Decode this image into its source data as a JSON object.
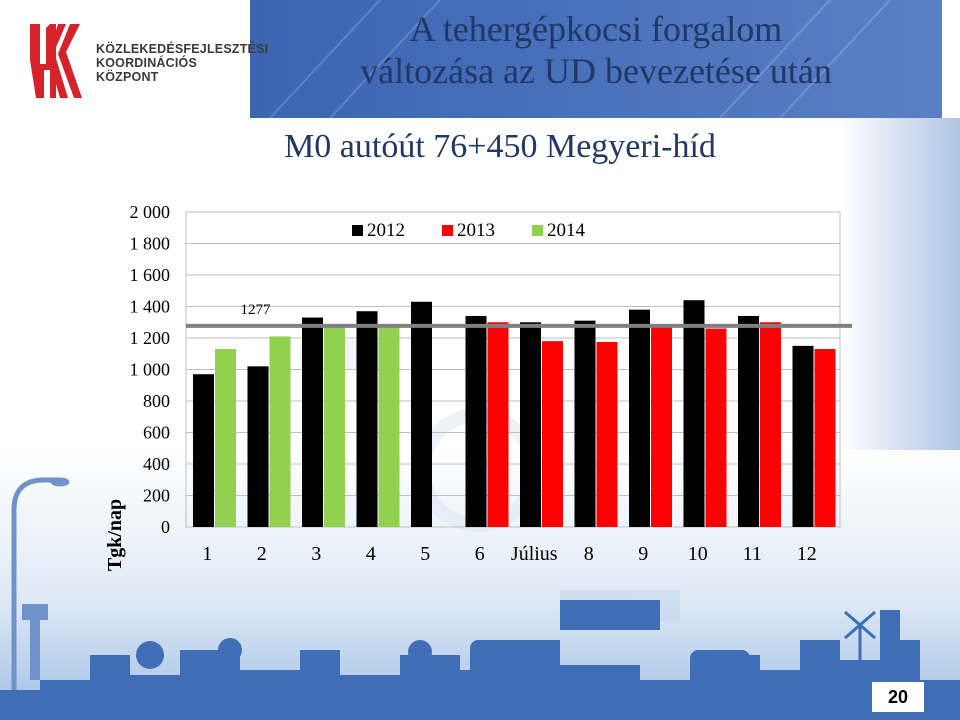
{
  "logo": {
    "line1": "KÖZLEKEDÉSFEJLESZTÉSI",
    "line2": "KOORDINÁCIÓS",
    "line3": "KÖZPONT",
    "color": "#d6232a"
  },
  "slide": {
    "title_line1": "A tehergépkocsi  forgalom",
    "title_line2": "változása az UD bevezetése után",
    "subtitle": "M0 autóút 76+450 Megyeri-híd",
    "page_number": "20"
  },
  "colors": {
    "s2012": "#000000",
    "s2013": "#ff0000",
    "s2014": "#92d050",
    "reference_line": "#808080",
    "title": "#1f3864",
    "banner": "#3b64b2"
  },
  "chart_data": {
    "type": "bar",
    "categories": [
      "1",
      "2",
      "3",
      "4",
      "5",
      "6",
      "Július",
      "8",
      "9",
      "10",
      "11",
      "12"
    ],
    "series": [
      {
        "name": "2012",
        "values": [
          970,
          1020,
          1330,
          1370,
          1430,
          1340,
          1300,
          1310,
          1380,
          1440,
          1340,
          1150
        ]
      },
      {
        "name": "2013",
        "values": [
          null,
          null,
          null,
          null,
          null,
          1300,
          1180,
          1175,
          1270,
          1260,
          1300,
          1130
        ]
      },
      {
        "name": "2014",
        "values": [
          1130,
          1210,
          1270,
          1270,
          null,
          null,
          null,
          null,
          null,
          null,
          null,
          null
        ]
      }
    ],
    "yticks": [
      0,
      200,
      400,
      600,
      800,
      1000,
      1200,
      1400,
      1600,
      1800,
      2000
    ],
    "ytick_labels": [
      "0",
      "200",
      "400",
      "600",
      "800",
      "1 000",
      "1 200",
      "1 400",
      "1 600",
      "1 800",
      "2 000"
    ],
    "ylim": [
      0,
      2000
    ],
    "ylabel": "Tgk/nap",
    "xlabel": "",
    "reference_line": {
      "value": 1277,
      "label": "1277"
    },
    "legend_position": "top",
    "grid": true
  }
}
